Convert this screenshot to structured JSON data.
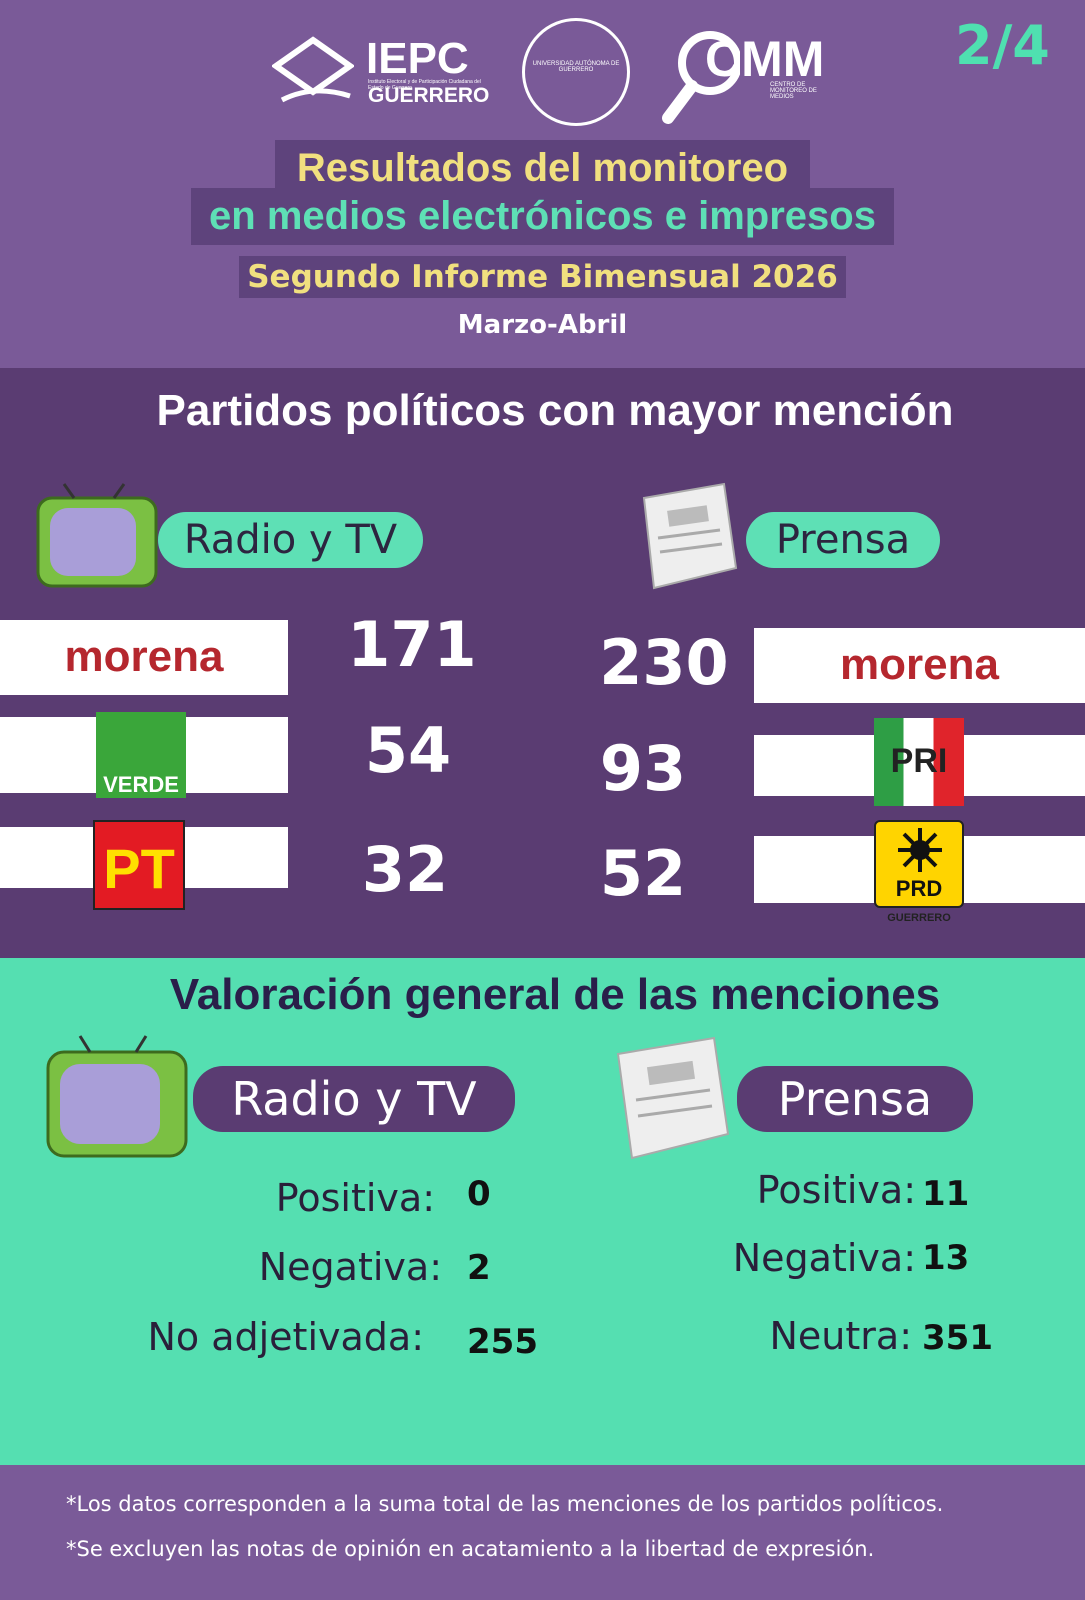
{
  "header": {
    "page": "2/4",
    "logos": {
      "iepc": {
        "name": "IEPC",
        "state": "GUERRERO",
        "caption": "Instituto Electoral y de Participación Ciudadana del Estado de Guerrero"
      },
      "uagro": "UNIVERSIDAD AUTÓNOMA DE GUERRERO",
      "cmm": {
        "name": "CMM",
        "caption": "CENTRO DE MONITOREO DE MEDIOS"
      }
    },
    "title_line1": "Resultados del monitoreo",
    "title_line2": "en medios electrónicos e impresos",
    "subtitle": "Segundo Informe Bimensual 2026",
    "period": "Marzo-Abril"
  },
  "mentions": {
    "title": "Partidos políticos con mayor mención",
    "radio_tv": {
      "label": "Radio y TV",
      "parties": [
        {
          "logo": "morena",
          "count": 171
        },
        {
          "logo": "VERDE",
          "count": 54
        },
        {
          "logo": "PT",
          "count": 32
        }
      ]
    },
    "prensa": {
      "label": "Prensa",
      "parties": [
        {
          "logo": "morena",
          "count": 230
        },
        {
          "logo": "PRI",
          "count": 93
        },
        {
          "logo": "PRD",
          "sublabel": "GUERRERO",
          "count": 52
        }
      ]
    }
  },
  "valuation": {
    "title": "Valoración general de las menciones",
    "radio_tv": {
      "label": "Radio y TV",
      "items": [
        {
          "label": "Positiva:",
          "count": 0
        },
        {
          "label": "Negativa:",
          "count": 2
        },
        {
          "label": "No adjetivada:",
          "count": 255
        }
      ]
    },
    "prensa": {
      "label": "Prensa",
      "items": [
        {
          "label": "Positiva:",
          "count": 11
        },
        {
          "label": "Negativa:",
          "count": 13
        },
        {
          "label": "Neutra:",
          "count": 351
        }
      ]
    }
  },
  "footnotes": [
    "*Los datos corresponden a la suma total de las menciones de los partidos políticos.",
    "*Se excluyen las notas de opinión en acatamiento a la libertad de expresión."
  ]
}
